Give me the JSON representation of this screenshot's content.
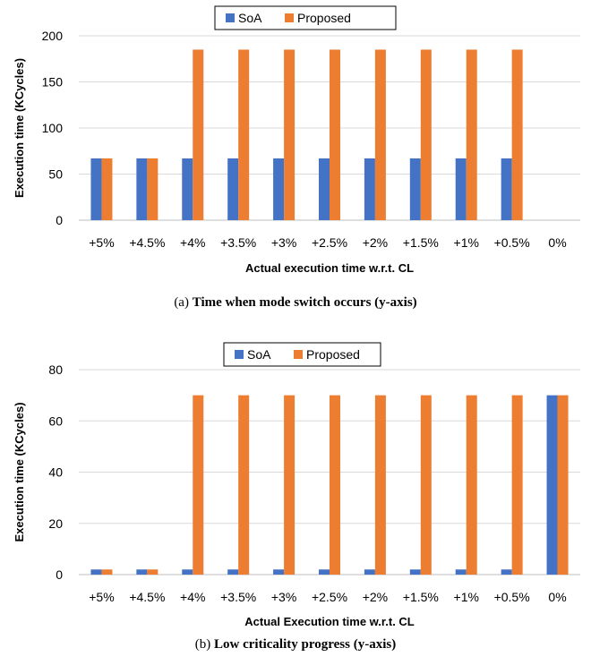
{
  "colors": {
    "soa": "#4472C4",
    "proposed": "#ED7D31",
    "grid": "#D9D9D9",
    "axis": "#BFBFBF"
  },
  "chart_data": [
    {
      "type": "bar",
      "categories": [
        "+5%",
        "+4.5%",
        "+4%",
        "+3.5%",
        "+3%",
        "+2.5%",
        "+2%",
        "+1.5%",
        "+1%",
        "+0.5%",
        "0%"
      ],
      "series": [
        {
          "name": "SoA",
          "values": [
            67,
            67,
            67,
            67,
            67,
            67,
            67,
            67,
            67,
            67,
            0
          ]
        },
        {
          "name": "Proposed",
          "values": [
            67,
            67,
            185,
            185,
            185,
            185,
            185,
            185,
            185,
            185,
            0
          ]
        }
      ],
      "title": "",
      "xlabel": "Actual execution time w.r.t. CL",
      "ylabel": "Execution time (KCycles)",
      "ylim": [
        0,
        200
      ],
      "yticks": [
        "0",
        "50",
        "100",
        "150",
        "200"
      ],
      "grid": true,
      "legend": "top-center"
    },
    {
      "type": "bar",
      "categories": [
        "+5%",
        "+4.5%",
        "+4%",
        "+3.5%",
        "+3%",
        "+2.5%",
        "+2%",
        "+1.5%",
        "+1%",
        "+0.5%",
        "0%"
      ],
      "series": [
        {
          "name": "SoA",
          "values": [
            2,
            2,
            2,
            2,
            2,
            2,
            2,
            2,
            2,
            2,
            70
          ]
        },
        {
          "name": "Proposed",
          "values": [
            2,
            2,
            70,
            70,
            70,
            70,
            70,
            70,
            70,
            70,
            70
          ]
        }
      ],
      "title": "",
      "xlabel": "Actual Execution time w.r.t. CL",
      "ylabel": "Execution time (KCycles)",
      "ylim": [
        0,
        80
      ],
      "yticks": [
        "0",
        "20",
        "40",
        "60",
        "80"
      ],
      "grid": true,
      "legend": "top-center"
    }
  ],
  "captions": [
    {
      "label": "(a)",
      "title": "Time when mode switch occurs (y-axis)"
    },
    {
      "label": "(b)",
      "title": "Low criticality progress (y-axis)"
    }
  ]
}
